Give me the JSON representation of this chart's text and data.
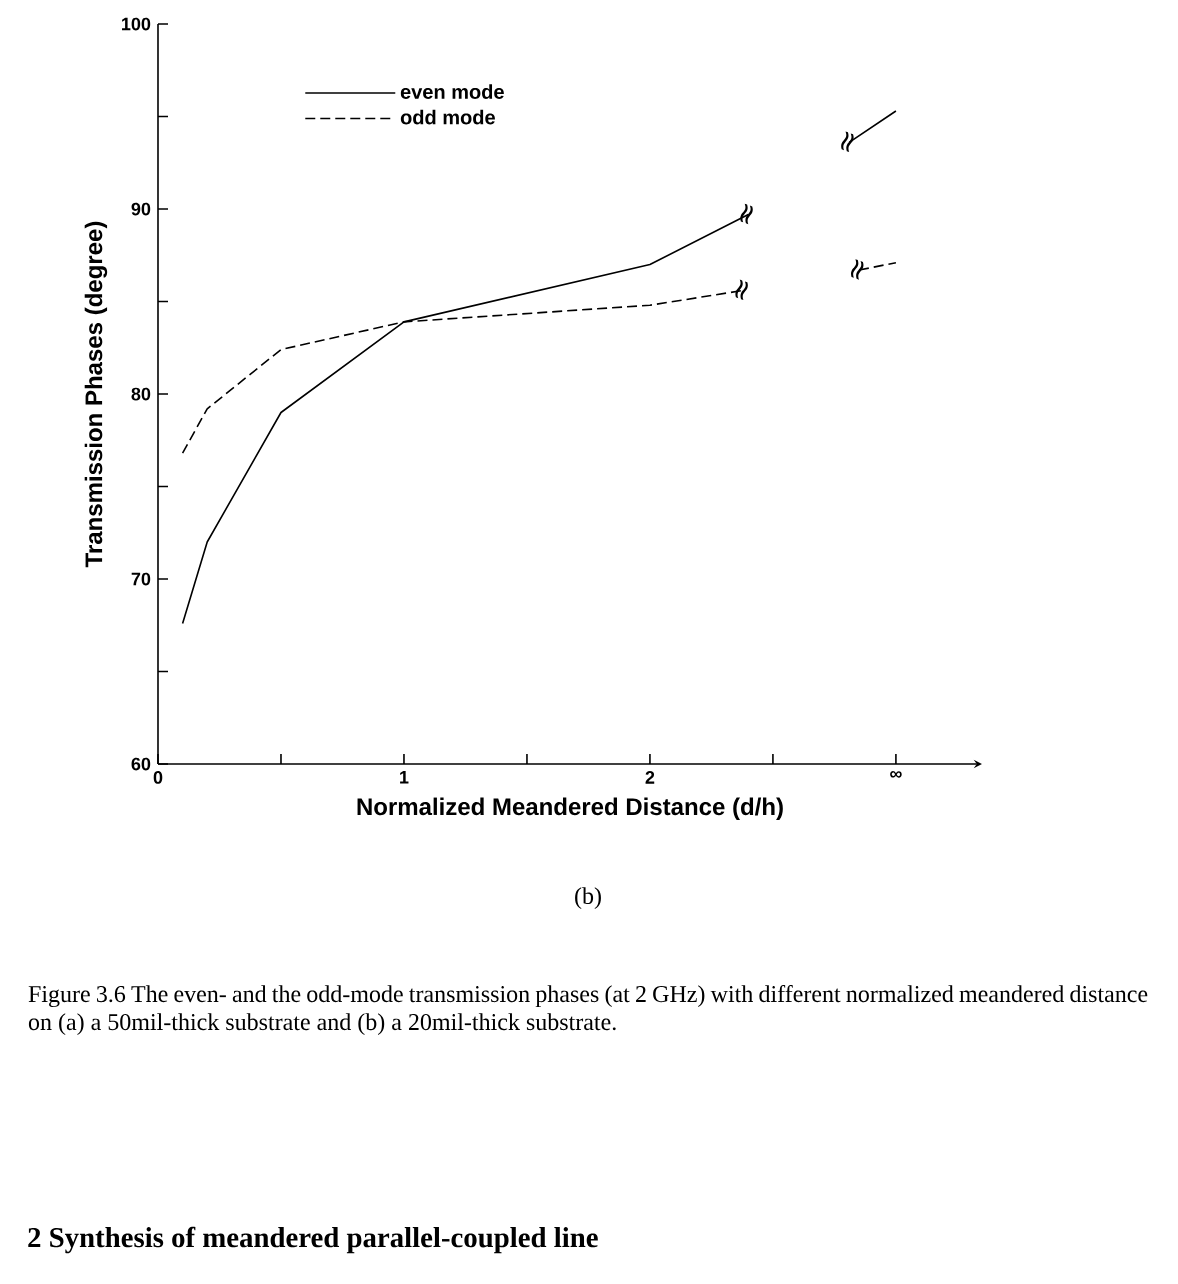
{
  "chart_data": {
    "type": "line",
    "xlabel": "Normalized Meandered Distance (d/h)",
    "ylabel": "Transmission Phases (degree)",
    "xlim": [
      0,
      3.35
    ],
    "ylim": [
      60,
      100
    ],
    "xticks": [
      0,
      {
        "value": 0.5,
        "label": null
      },
      1,
      {
        "value": 1.5,
        "label": null
      },
      2,
      {
        "value": 2.5,
        "label": null
      },
      {
        "value": 3,
        "label": "∞"
      }
    ],
    "yticks": [
      60,
      {
        "value": 65,
        "label": null
      },
      70,
      {
        "value": 75,
        "label": null
      },
      80,
      {
        "value": 85,
        "label": null
      },
      90,
      {
        "value": 95,
        "label": null
      },
      100
    ],
    "grid": false,
    "legend": "top left",
    "series": [
      {
        "name": "even mode",
        "color": "#000000",
        "line_style": "solid",
        "x": [
          0.1,
          0.2,
          0.5,
          1,
          2,
          2.4,
          2.6,
          2.81,
          3
        ],
        "values": [
          67.6,
          72.0,
          79.0,
          83.9,
          87.0,
          89.7,
          null,
          93.6,
          95.3
        ]
      },
      {
        "name": "odd mode",
        "color": "#000000",
        "line_style": "dashed",
        "x": [
          0.1,
          0.2,
          0.5,
          1,
          2,
          2.38,
          2.6,
          2.85,
          3
        ],
        "values": [
          76.8,
          79.2,
          82.4,
          83.9,
          84.8,
          85.6,
          null,
          86.7,
          87.1
        ]
      }
    ],
    "annotations": [
      {
        "text": "≈",
        "x": 2.4,
        "y": 89.7
      },
      {
        "text": "≈",
        "x": 2.38,
        "y": 85.6
      },
      {
        "text": "≈",
        "x": 2.81,
        "y": 93.6
      },
      {
        "text": "≈",
        "x": 2.85,
        "y": 86.7
      },
      "(b)",
      "Figure 3.6 The even- and the odd-mode transmission phases (at 2 GHz) with different normalized meandered distance on (a) a 50mil-thick substrate and (b) a 20mil-thick substrate.",
      "2 Synthesis of meandered parallel-coupled line"
    ]
  }
}
